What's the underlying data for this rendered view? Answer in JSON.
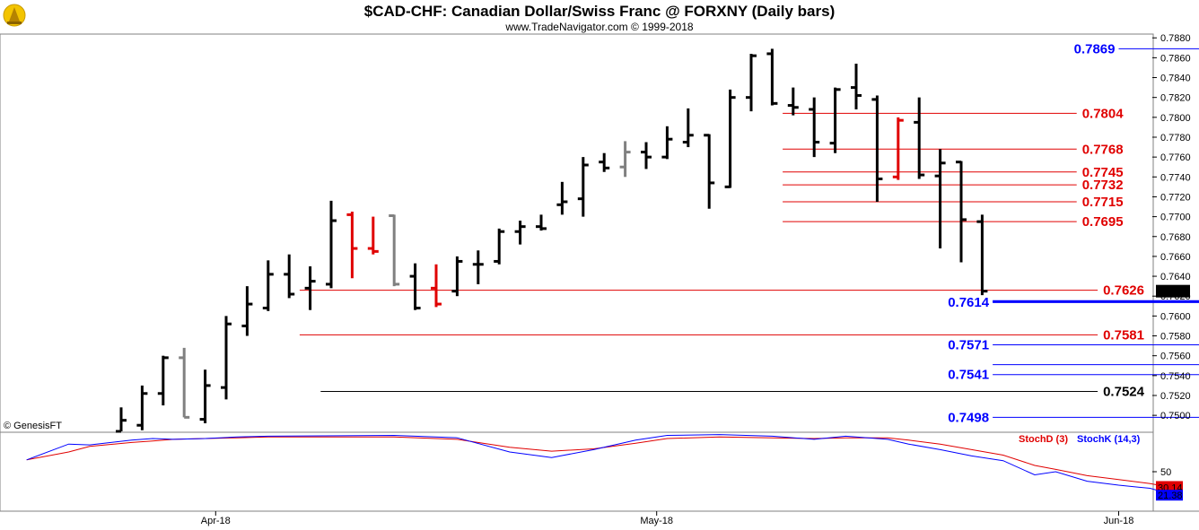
{
  "chart_data": [
    {
      "type": "ohlc",
      "title": "$CAD-CHF:  Canadian Dollar/Swiss Franc @ FORXNY  (Daily bars)",
      "subtitle": "www.TradeNavigator.com © 1999-2018",
      "watermark": "© GenesisFT",
      "ylim": [
        0.7492,
        0.7882
      ],
      "y_ticks": [
        "0.7880",
        "0.7860",
        "0.7840",
        "0.7820",
        "0.7800",
        "0.7780",
        "0.7760",
        "0.7740",
        "0.7720",
        "0.7700",
        "0.7680",
        "0.7660",
        "0.7640",
        "0.7620",
        "0.7600",
        "0.7580",
        "0.7560",
        "0.7540",
        "0.7520",
        "0.7500"
      ],
      "x_labels": [
        {
          "label": "Apr-18",
          "index": 4.5
        },
        {
          "label": "May-18",
          "index": 25.5
        },
        {
          "label": "Jun-18",
          "index": 47.5
        }
      ],
      "last_price": "0.7625",
      "last_price_color": "#000000",
      "bars": [
        {
          "o": 0.7475,
          "h": 0.7508,
          "l": 0.747,
          "c": 0.7495,
          "color": "#000000"
        },
        {
          "o": 0.749,
          "h": 0.753,
          "l": 0.7485,
          "c": 0.7522,
          "color": "#000000"
        },
        {
          "o": 0.7522,
          "h": 0.756,
          "l": 0.751,
          "c": 0.7558,
          "color": "#000000"
        },
        {
          "o": 0.7558,
          "h": 0.7568,
          "l": 0.7498,
          "c": 0.7498,
          "color": "#808080"
        },
        {
          "o": 0.7496,
          "h": 0.7546,
          "l": 0.7492,
          "c": 0.753,
          "color": "#000000"
        },
        {
          "o": 0.7528,
          "h": 0.76,
          "l": 0.7516,
          "c": 0.7592,
          "color": "#000000"
        },
        {
          "o": 0.759,
          "h": 0.763,
          "l": 0.758,
          "c": 0.7612,
          "color": "#000000"
        },
        {
          "o": 0.7608,
          "h": 0.7656,
          "l": 0.7605,
          "c": 0.7642,
          "color": "#000000"
        },
        {
          "o": 0.7642,
          "h": 0.7662,
          "l": 0.7618,
          "c": 0.7622,
          "color": "#000000"
        },
        {
          "o": 0.7628,
          "h": 0.765,
          "l": 0.7606,
          "c": 0.7635,
          "color": "#000000"
        },
        {
          "o": 0.7632,
          "h": 0.7716,
          "l": 0.7628,
          "c": 0.7696,
          "color": "#000000"
        },
        {
          "o": 0.7702,
          "h": 0.7705,
          "l": 0.7638,
          "c": 0.7668,
          "color": "#e00000"
        },
        {
          "o": 0.7668,
          "h": 0.77,
          "l": 0.7662,
          "c": 0.7665,
          "color": "#e00000"
        },
        {
          "o": 0.7701,
          "h": 0.7702,
          "l": 0.763,
          "c": 0.7632,
          "color": "#808080"
        },
        {
          "o": 0.764,
          "h": 0.7653,
          "l": 0.7606,
          "c": 0.7608,
          "color": "#000000"
        },
        {
          "o": 0.7628,
          "h": 0.7652,
          "l": 0.7609,
          "c": 0.7612,
          "color": "#e00000"
        },
        {
          "o": 0.7625,
          "h": 0.766,
          "l": 0.762,
          "c": 0.7655,
          "color": "#000000"
        },
        {
          "o": 0.7652,
          "h": 0.7666,
          "l": 0.7632,
          "c": 0.7652,
          "color": "#000000"
        },
        {
          "o": 0.7655,
          "h": 0.7688,
          "l": 0.7652,
          "c": 0.7685,
          "color": "#000000"
        },
        {
          "o": 0.7685,
          "h": 0.7696,
          "l": 0.7672,
          "c": 0.769,
          "color": "#000000"
        },
        {
          "o": 0.769,
          "h": 0.7702,
          "l": 0.7686,
          "c": 0.7688,
          "color": "#000000"
        },
        {
          "o": 0.7712,
          "h": 0.7735,
          "l": 0.7702,
          "c": 0.7715,
          "color": "#000000"
        },
        {
          "o": 0.7718,
          "h": 0.776,
          "l": 0.77,
          "c": 0.7752,
          "color": "#000000"
        },
        {
          "o": 0.7755,
          "h": 0.7764,
          "l": 0.7745,
          "c": 0.7749,
          "color": "#000000"
        },
        {
          "o": 0.775,
          "h": 0.7776,
          "l": 0.774,
          "c": 0.7765,
          "color": "#808080"
        },
        {
          "o": 0.7765,
          "h": 0.7775,
          "l": 0.7748,
          "c": 0.776,
          "color": "#000000"
        },
        {
          "o": 0.776,
          "h": 0.7791,
          "l": 0.7758,
          "c": 0.7778,
          "color": "#000000"
        },
        {
          "o": 0.7775,
          "h": 0.7809,
          "l": 0.777,
          "c": 0.7782,
          "color": "#000000"
        },
        {
          "o": 0.7782,
          "h": 0.7783,
          "l": 0.7708,
          "c": 0.7734,
          "color": "#000000"
        },
        {
          "o": 0.773,
          "h": 0.7828,
          "l": 0.7729,
          "c": 0.782,
          "color": "#000000"
        },
        {
          "o": 0.782,
          "h": 0.7864,
          "l": 0.7806,
          "c": 0.7862,
          "color": "#000000"
        },
        {
          "o": 0.7864,
          "h": 0.7869,
          "l": 0.7812,
          "c": 0.7814,
          "color": "#000000"
        },
        {
          "o": 0.7812,
          "h": 0.783,
          "l": 0.7802,
          "c": 0.781,
          "color": "#000000"
        },
        {
          "o": 0.7808,
          "h": 0.782,
          "l": 0.776,
          "c": 0.7775,
          "color": "#000000"
        },
        {
          "o": 0.7774,
          "h": 0.783,
          "l": 0.7764,
          "c": 0.7828,
          "color": "#000000"
        },
        {
          "o": 0.783,
          "h": 0.7854,
          "l": 0.7808,
          "c": 0.7822,
          "color": "#000000"
        },
        {
          "o": 0.7818,
          "h": 0.7822,
          "l": 0.7715,
          "c": 0.7738,
          "color": "#000000"
        },
        {
          "o": 0.774,
          "h": 0.78,
          "l": 0.7737,
          "c": 0.7797,
          "color": "#e00000"
        },
        {
          "o": 0.7795,
          "h": 0.782,
          "l": 0.7738,
          "c": 0.7742,
          "color": "#000000"
        },
        {
          "o": 0.7741,
          "h": 0.7768,
          "l": 0.7668,
          "c": 0.7754,
          "color": "#000000"
        },
        {
          "o": 0.7755,
          "h": 0.7756,
          "l": 0.7654,
          "c": 0.7697,
          "color": "#000000"
        },
        {
          "o": 0.7695,
          "h": 0.7702,
          "l": 0.7621,
          "c": 0.7625,
          "color": "#000000"
        }
      ],
      "levels": [
        {
          "value": 0.7869,
          "label": "0.7869",
          "color": "#0000ff",
          "x0": 47.5,
          "x1": 54.5,
          "label_side": "left"
        },
        {
          "value": 0.7804,
          "label": "0.7804",
          "color": "#e00000",
          "x0": 31.5,
          "x1": 45.5,
          "label_side": "right"
        },
        {
          "value": 0.7768,
          "label": "0.7768",
          "color": "#e00000",
          "x0": 31.5,
          "x1": 45.5,
          "label_side": "right"
        },
        {
          "value": 0.7745,
          "label": "0.7745",
          "color": "#e00000",
          "x0": 31.5,
          "x1": 45.5,
          "label_side": "right"
        },
        {
          "value": 0.7732,
          "label": "0.7732",
          "color": "#e00000",
          "x0": 31.5,
          "x1": 45.5,
          "label_side": "right"
        },
        {
          "value": 0.7715,
          "label": "0.7715",
          "color": "#e00000",
          "x0": 31.5,
          "x1": 45.5,
          "label_side": "right"
        },
        {
          "value": 0.7695,
          "label": "0.7695",
          "color": "#e00000",
          "x0": 31.5,
          "x1": 45.5,
          "label_side": "right"
        },
        {
          "value": 0.7626,
          "label": "0.7626",
          "color": "#e00000",
          "x0": 8.5,
          "x1": 46.5,
          "label_side": "right"
        },
        {
          "value": 0.7614,
          "label": "0.7614",
          "color": "#0000ff",
          "x0": 41.5,
          "x1": 54.5,
          "label_side": "left"
        },
        {
          "value": 0.7615,
          "label": "0.7615",
          "color": "#0000ff",
          "x0": 41.5,
          "x1": 54.5,
          "label_side": "right"
        },
        {
          "value": 0.7581,
          "label": "0.7581",
          "color": "#e00000",
          "x0": 8.5,
          "x1": 46.5,
          "label_side": "right"
        },
        {
          "value": 0.7571,
          "label": "0.7571",
          "color": "#0000ff",
          "x0": 41.5,
          "x1": 54.5,
          "label_side": "left"
        },
        {
          "value": 0.7551,
          "label": "0.7551",
          "color": "#0000ff",
          "x0": 41.5,
          "x1": 54.5,
          "label_side": "right"
        },
        {
          "value": 0.7541,
          "label": "0.7541",
          "color": "#0000ff",
          "x0": 41.5,
          "x1": 54.5,
          "label_side": "left"
        },
        {
          "value": 0.7524,
          "label": "0.7524",
          "color": "#000000",
          "x0": 9.5,
          "x1": 46.5,
          "label_side": "right"
        },
        {
          "value": 0.7498,
          "label": "0.7498",
          "color": "#0000ff",
          "x0": 41.5,
          "x1": 54.5,
          "label_side": "left"
        }
      ]
    },
    {
      "type": "line",
      "title": "",
      "ylim": [
        0,
        100
      ],
      "y_ticks": [
        "50"
      ],
      "legend": [
        "StochD (3)",
        "StochK (14,3)"
      ],
      "series": [
        {
          "name": "StochK (14,3)",
          "color": "#0000ff",
          "value_label": "21.38",
          "points": [
            [
              -4.5,
              65
            ],
            [
              -2.5,
              85
            ],
            [
              -1.5,
              84
            ],
            [
              0.5,
              90
            ],
            [
              1.5,
              92
            ],
            [
              2.5,
              91
            ],
            [
              4,
              92
            ],
            [
              5.5,
              94
            ],
            [
              7,
              95
            ],
            [
              13,
              96
            ],
            [
              16,
              93
            ],
            [
              18.5,
              75
            ],
            [
              20.5,
              68
            ],
            [
              22.5,
              78
            ],
            [
              24.5,
              90
            ],
            [
              26,
              96
            ],
            [
              28.5,
              97
            ],
            [
              31,
              95
            ],
            [
              33,
              91
            ],
            [
              34.5,
              95
            ],
            [
              36.5,
              91
            ],
            [
              37.5,
              85
            ],
            [
              39,
              78
            ],
            [
              40.5,
              70
            ],
            [
              42,
              64
            ],
            [
              43.5,
              46
            ],
            [
              44.5,
              50
            ],
            [
              46,
              38
            ],
            [
              47.5,
              33
            ],
            [
              49,
              29
            ],
            [
              50,
              21.38
            ]
          ]
        },
        {
          "name": "StochD (3)",
          "color": "#e00000",
          "value_label": "30.14",
          "points": [
            [
              -4.5,
              65
            ],
            [
              -2.5,
              75
            ],
            [
              -1.5,
              82
            ],
            [
              0.5,
              87
            ],
            [
              1.5,
              89
            ],
            [
              2.5,
              91
            ],
            [
              4,
              92
            ],
            [
              5.5,
              93
            ],
            [
              7,
              94
            ],
            [
              13,
              94
            ],
            [
              16,
              91
            ],
            [
              18.5,
              81
            ],
            [
              20.5,
              76
            ],
            [
              22.5,
              79
            ],
            [
              24.5,
              86
            ],
            [
              26,
              92
            ],
            [
              28.5,
              94
            ],
            [
              31,
              93
            ],
            [
              33,
              92
            ],
            [
              34.5,
              93
            ],
            [
              36.5,
              93
            ],
            [
              37.5,
              90
            ],
            [
              39,
              85
            ],
            [
              40.5,
              78
            ],
            [
              42,
              71
            ],
            [
              43.5,
              58
            ],
            [
              44.5,
              53
            ],
            [
              46,
              45
            ],
            [
              47.5,
              40
            ],
            [
              49,
              35
            ],
            [
              50,
              30.14
            ]
          ]
        }
      ]
    }
  ]
}
